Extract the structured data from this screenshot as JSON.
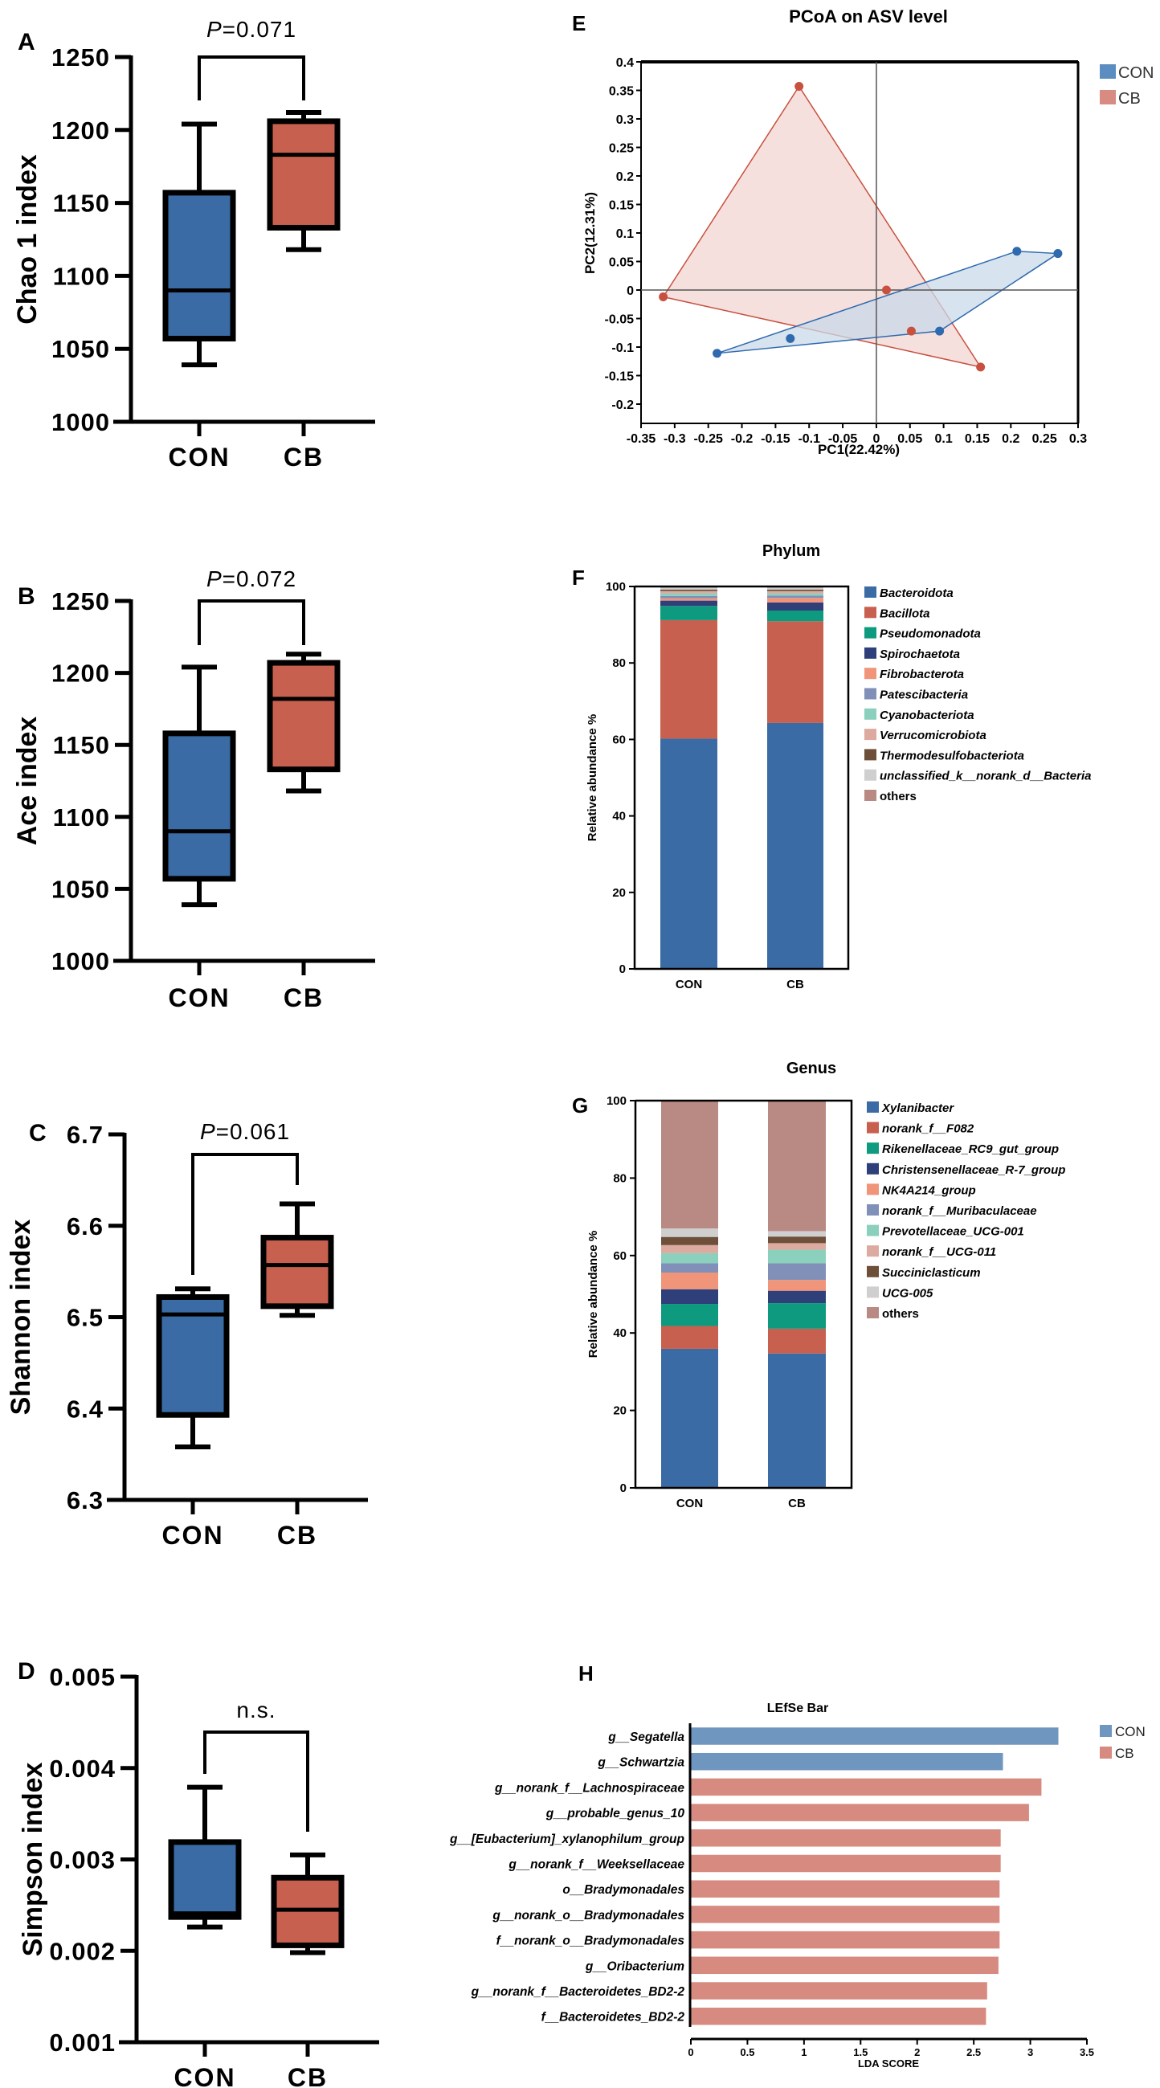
{
  "chart_data": [
    {
      "panel": "A",
      "type": "box",
      "ylabel": "Chao 1 index",
      "categories": [
        "CON",
        "CB"
      ],
      "ylim": [
        1000,
        1250
      ],
      "yticks": [
        "1000",
        "1050",
        "1100",
        "1150",
        "1200",
        "1250"
      ],
      "series": [
        {
          "name": "CON",
          "color": "#3A6BA5",
          "min": 1039,
          "q1": 1057,
          "median": 1090,
          "q3": 1157,
          "max": 1204
        },
        {
          "name": "CB",
          "color": "#C8604F",
          "min": 1118,
          "q1": 1133,
          "median": 1183,
          "q3": 1206,
          "max": 1212
        }
      ],
      "significance": {
        "prefix": "P",
        "value": "=0.071"
      }
    },
    {
      "panel": "B",
      "type": "box",
      "ylabel": "Ace index",
      "categories": [
        "CON",
        "CB"
      ],
      "ylim": [
        1000,
        1250
      ],
      "yticks": [
        "1000",
        "1050",
        "1100",
        "1150",
        "1200",
        "1250"
      ],
      "series": [
        {
          "name": "CON",
          "color": "#3A6BA5",
          "min": 1039,
          "q1": 1057,
          "median": 1090,
          "q3": 1158,
          "max": 1204
        },
        {
          "name": "CB",
          "color": "#C8604F",
          "min": 1118,
          "q1": 1133,
          "median": 1182,
          "q3": 1207,
          "max": 1213
        }
      ],
      "significance": {
        "prefix": "P",
        "value": "=0.072"
      }
    },
    {
      "panel": "C",
      "type": "box",
      "ylabel": "Shannon index",
      "categories": [
        "CON",
        "CB"
      ],
      "ylim": [
        6.3,
        6.7
      ],
      "yticks": [
        "6.3",
        "6.4",
        "6.5",
        "6.6",
        "6.7"
      ],
      "series": [
        {
          "name": "CON",
          "color": "#3A6BA5",
          "min": 6.358,
          "q1": 6.393,
          "median": 6.503,
          "q3": 6.522,
          "max": 6.531
        },
        {
          "name": "CB",
          "color": "#C8604F",
          "min": 6.502,
          "q1": 6.512,
          "median": 6.557,
          "q3": 6.587,
          "max": 6.624
        }
      ],
      "significance": {
        "prefix": "P",
        "value": "=0.061"
      }
    },
    {
      "panel": "D",
      "type": "box",
      "ylabel": "Simpson index",
      "categories": [
        "CON",
        "CB"
      ],
      "ylim": [
        0.001,
        0.005
      ],
      "yticks": [
        "0.001",
        "0.002",
        "0.003",
        "0.004",
        "0.005"
      ],
      "series": [
        {
          "name": "CON",
          "color": "#3A6BA5",
          "min": 0.00226,
          "q1": 0.00237,
          "median": 0.00241,
          "q3": 0.00319,
          "max": 0.00379
        },
        {
          "name": "CB",
          "color": "#C8604F",
          "min": 0.00198,
          "q1": 0.00206,
          "median": 0.00245,
          "q3": 0.0028,
          "max": 0.00305
        }
      ],
      "significance": {
        "prefix": "",
        "value": "n.s."
      }
    },
    {
      "panel": "E",
      "type": "scatter",
      "title": "PCoA on ASV level",
      "xlabel": "PC1(22.42%)",
      "ylabel": "PC2(12.31%)",
      "xlim": [
        -0.35,
        0.3
      ],
      "ylim": [
        -0.2,
        0.4
      ],
      "xticks": [
        "-0.35",
        "-0.3",
        "-0.25",
        "-0.2",
        "-0.15",
        "-0.1",
        "-0.05",
        "0",
        "0.05",
        "0.1",
        "0.15",
        "0.2",
        "0.25",
        "0.3"
      ],
      "yticks": [
        "-0.2",
        "-0.15",
        "-0.1",
        "-0.05",
        "0",
        "0.05",
        "0.1",
        "0.15",
        "0.2",
        "0.25",
        "0.3",
        "0.35",
        "0.4"
      ],
      "legend_position": "top-right",
      "series": [
        {
          "name": "CON",
          "color": "#2F69AE",
          "fill": "#C9D9E8",
          "legend_color": "#5B8DC0",
          "points": [
            [
              -0.237,
              -0.111
            ],
            [
              -0.128,
              -0.085
            ],
            [
              0.094,
              -0.072
            ],
            [
              0.209,
              0.068
            ],
            [
              0.27,
              0.064
            ]
          ]
        },
        {
          "name": "CB",
          "color": "#C8503F",
          "fill": "#F2D6D2",
          "legend_color": "#D88B80",
          "points": [
            [
              -0.317,
              -0.012
            ],
            [
              -0.115,
              0.357
            ],
            [
              0.015,
              0.0
            ],
            [
              0.052,
              -0.072
            ],
            [
              0.155,
              -0.135
            ]
          ]
        }
      ]
    },
    {
      "panel": "F",
      "type": "bar",
      "stacked": true,
      "title": "Phylum",
      "ylabel": "Relative abundance %",
      "categories": [
        "CON",
        "CB"
      ],
      "ylim": [
        0,
        100
      ],
      "yticks": [
        "0",
        "20",
        "40",
        "60",
        "80",
        "100"
      ],
      "series": [
        {
          "name": "Bacteroidota",
          "color": "#3A6BA5",
          "values": [
            60.2,
            64.3
          ]
        },
        {
          "name": "Bacillota",
          "color": "#C8604F",
          "values": [
            31.0,
            26.6
          ]
        },
        {
          "name": "Pseudomonadota",
          "color": "#0E9A7E",
          "values": [
            3.7,
            2.8
          ]
        },
        {
          "name": "Spirochaetota",
          "color": "#2E3F7A",
          "values": [
            1.4,
            2.1
          ]
        },
        {
          "name": "Fibrobacterota",
          "color": "#F0957A",
          "values": [
            0.6,
            1.2
          ]
        },
        {
          "name": "Patescibacteria",
          "color": "#8090B8",
          "values": [
            0.6,
            0.6
          ]
        },
        {
          "name": "Cyanobacteriota",
          "color": "#8BD0BD",
          "values": [
            0.7,
            0.6
          ]
        },
        {
          "name": "Verrucomicrobiota",
          "color": "#DDAA9F",
          "values": [
            0.6,
            0.6
          ]
        },
        {
          "name": "Thermodesulfobacteriota",
          "color": "#6E4F3A",
          "values": [
            0.4,
            0.4
          ]
        },
        {
          "name": "unclassified_k__norank_d__Bacteria",
          "color": "#CFCFCF",
          "values": [
            0.5,
            0.5
          ]
        },
        {
          "name": "others",
          "color": "#B98983",
          "values": [
            0.3,
            0.3
          ]
        }
      ]
    },
    {
      "panel": "G",
      "type": "bar",
      "stacked": true,
      "title": "Genus",
      "ylabel": "Relative abundance %",
      "categories": [
        "CON",
        "CB"
      ],
      "ylim": [
        0,
        100
      ],
      "yticks": [
        "0",
        "20",
        "40",
        "60",
        "80",
        "100"
      ],
      "series": [
        {
          "name": "Xylanibacter",
          "color": "#3A6BA5",
          "values": [
            35.9,
            34.7
          ]
        },
        {
          "name": "norank_f__F082",
          "color": "#C8604F",
          "values": [
            5.9,
            6.4
          ]
        },
        {
          "name": "Rikenellaceae_RC9_gut_group",
          "color": "#0E9A7E",
          "values": [
            5.7,
            6.6
          ]
        },
        {
          "name": "Christensenellaceae_R-7_group",
          "color": "#2E3F7A",
          "values": [
            3.8,
            3.2
          ]
        },
        {
          "name": "NK4A214_group",
          "color": "#F0957A",
          "values": [
            4.3,
            2.8
          ]
        },
        {
          "name": "norank_f__Muribaculaceae",
          "color": "#8090B8",
          "values": [
            2.4,
            4.3
          ]
        },
        {
          "name": "Prevotellaceae_UCG-001",
          "color": "#8BD0BD",
          "values": [
            2.6,
            3.5
          ]
        },
        {
          "name": "norank_f__UCG-011",
          "color": "#DDAA9F",
          "values": [
            2.1,
            1.7
          ]
        },
        {
          "name": "Succiniclasticum",
          "color": "#6E4F3A",
          "values": [
            2.1,
            1.7
          ]
        },
        {
          "name": "UCG-005",
          "color": "#CFCFCF",
          "values": [
            2.2,
            1.4
          ]
        },
        {
          "name": "others",
          "color": "#B98983",
          "values": [
            33.0,
            33.7
          ]
        }
      ]
    },
    {
      "panel": "H",
      "type": "bar",
      "orientation": "horizontal",
      "title": "LEfSe Bar",
      "xlabel": "LDA SCORE",
      "xlim": [
        0,
        3.5
      ],
      "xticks": [
        "0",
        "0.5",
        "1",
        "1.5",
        "2",
        "2.5",
        "3",
        "3.5"
      ],
      "legend_position": "top-right",
      "legend": [
        {
          "name": "CON",
          "color": "#6E96BF"
        },
        {
          "name": "CB",
          "color": "#D68A80"
        }
      ],
      "features": [
        {
          "name": "g__Segatella",
          "group": "CON",
          "value": 3.25
        },
        {
          "name": "g__Schwartzia",
          "group": "CON",
          "value": 2.76
        },
        {
          "name": "g__norank_f__Lachnospiraceae",
          "group": "CB",
          "value": 3.1
        },
        {
          "name": "g__probable_genus_10",
          "group": "CB",
          "value": 2.99
        },
        {
          "name": "g__[Eubacterium]_xylanophilum_group",
          "group": "CB",
          "value": 2.74
        },
        {
          "name": "g__norank_f__Weeksellaceae",
          "group": "CB",
          "value": 2.74
        },
        {
          "name": "o__Bradymonadales",
          "group": "CB",
          "value": 2.73
        },
        {
          "name": "g__norank_o__Bradymonadales",
          "group": "CB",
          "value": 2.73
        },
        {
          "name": "f__norank_o__Bradymonadales",
          "group": "CB",
          "value": 2.73
        },
        {
          "name": "g__Oribacterium",
          "group": "CB",
          "value": 2.72
        },
        {
          "name": "g__norank_f__Bacteroidetes_BD2-2",
          "group": "CB",
          "value": 2.62
        },
        {
          "name": "f__Bacteroidetes_BD2-2",
          "group": "CB",
          "value": 2.61
        }
      ]
    }
  ]
}
